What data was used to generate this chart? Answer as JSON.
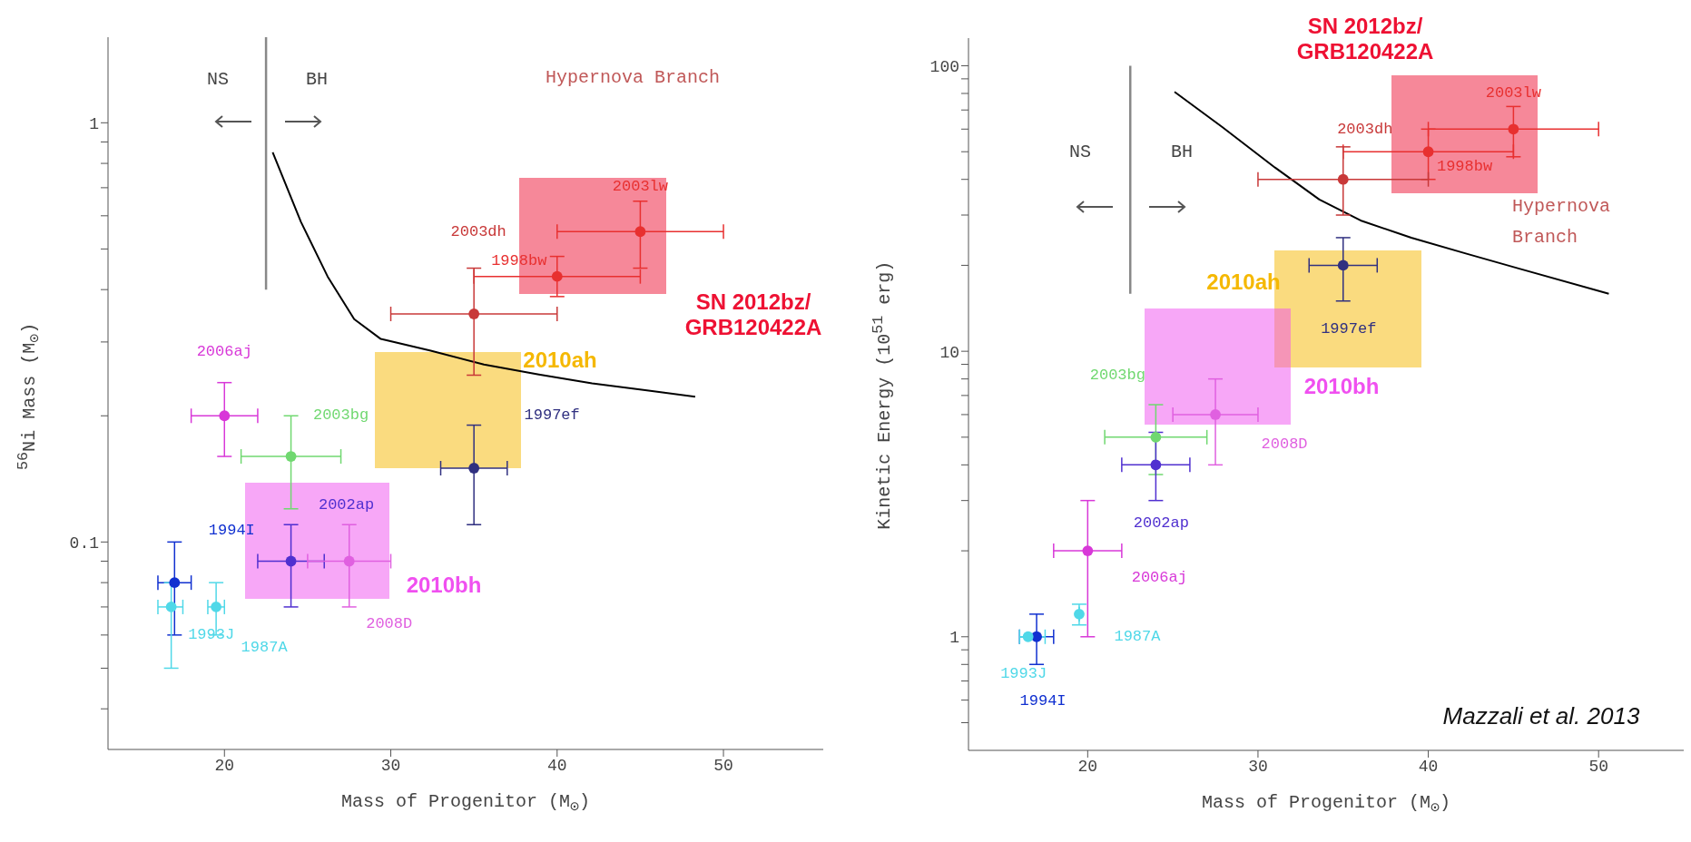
{
  "chart_data": [
    {
      "type": "scatter",
      "xlabel": "Mass of Progenitor (M$_{⊙}$)",
      "ylabel": "$^{56}$Ni Mass (M$_{⊙}$)",
      "log": "y",
      "xlim": [
        13,
        56
      ],
      "xticks": [
        20,
        30,
        40,
        50
      ],
      "ylim": [
        0.032,
        1.6
      ],
      "yticks": [
        {
          "value": 0.04,
          "label": null
        },
        {
          "value": 0.05,
          "label": null
        },
        {
          "value": 0.06,
          "label": null
        },
        {
          "value": 0.07,
          "label": null
        },
        {
          "value": 0.08,
          "label": null
        },
        {
          "value": 0.09,
          "label": null
        },
        0.1,
        {
          "value": 0.2,
          "label": null
        },
        {
          "value": 0.3,
          "label": null
        },
        {
          "value": 0.4,
          "label": null
        },
        {
          "value": 0.5,
          "label": null
        },
        {
          "value": 0.6,
          "label": null
        },
        {
          "value": 0.7,
          "label": null
        },
        {
          "value": 0.8,
          "label": null
        },
        {
          "value": 0.9,
          "label": null
        },
        1
      ],
      "annotations": [
        "Hypernova Branch",
        "NS",
        "BH",
        "SN 2012bz/\nGRB120422A",
        "2010ah",
        "2010bh"
      ],
      "series": [
        {
          "type": "line",
          "color": "#000000",
          "x": [
            22.9,
            24.6,
            26.2,
            27.8,
            29.4,
            32.4,
            35.6,
            38.9,
            42.1,
            45.4,
            48.3
          ],
          "values": [
            0.85,
            0.58,
            0.43,
            0.34,
            0.305,
            0.286,
            0.265,
            0.251,
            0.239,
            0.23,
            0.222
          ]
        },
        {
          "type": "line",
          "color": "#888888",
          "x": [
            22.5,
            22.5
          ],
          "values": [
            1.6,
            0.4
          ]
        },
        {
          "name": "2003lw",
          "marker": "circle",
          "color": "#e83030",
          "x": [
            45
          ],
          "values": [
            0.55
          ],
          "errors": [
            [
              0.45,
              0.65
            ]
          ],
          "xerrors": [
            [
              40,
              50
            ]
          ]
        },
        {
          "name": "1998bw",
          "marker": "circle",
          "color": "#e83030",
          "x": [
            40
          ],
          "values": [
            0.43
          ],
          "errors": [
            [
              0.385,
              0.48
            ]
          ],
          "xerrors": [
            [
              35,
              45
            ]
          ]
        },
        {
          "name": "2003dh",
          "marker": "circle",
          "color": "#c83838",
          "x": [
            35
          ],
          "values": [
            0.35
          ],
          "errors": [
            [
              0.25,
              0.45
            ]
          ],
          "xerrors": [
            [
              30,
              40
            ]
          ]
        },
        {
          "name": "1997ef",
          "marker": "circle",
          "color": "#303080",
          "x": [
            35
          ],
          "values": [
            0.15
          ],
          "errors": [
            [
              0.11,
              0.19
            ]
          ],
          "xerrors": [
            [
              33,
              37
            ]
          ]
        },
        {
          "name": "2006aj",
          "marker": "circle",
          "color": "#d838d8",
          "x": [
            20
          ],
          "values": [
            0.2
          ],
          "errors": [
            [
              0.16,
              0.24
            ]
          ],
          "xerrors": [
            [
              18,
              22
            ]
          ]
        },
        {
          "name": "2003bg",
          "marker": "circle",
          "color": "#70d870",
          "x": [
            24
          ],
          "values": [
            0.16
          ],
          "errors": [
            [
              0.12,
              0.2
            ]
          ],
          "xerrors": [
            [
              21,
              27
            ]
          ]
        },
        {
          "name": "2002ap",
          "marker": "circle",
          "color": "#5030d0",
          "x": [
            24
          ],
          "values": [
            0.09
          ],
          "errors": [
            [
              0.07,
              0.11
            ]
          ],
          "xerrors": [
            [
              22,
              26
            ]
          ]
        },
        {
          "name": "2008D",
          "marker": "circle",
          "color": "#e060e0",
          "x": [
            27.5
          ],
          "values": [
            0.09
          ],
          "errors": [
            [
              0.07,
              0.11
            ]
          ],
          "xerrors": [
            [
              25,
              30
            ]
          ]
        },
        {
          "name": "1994I",
          "marker": "circle",
          "color": "#1030d0",
          "x": [
            17
          ],
          "values": [
            0.08
          ],
          "errors": [
            [
              0.06,
              0.1
            ]
          ],
          "xerrors": [
            [
              16,
              18
            ]
          ]
        },
        {
          "name": "1993J",
          "marker": "circle",
          "color": "#50d8e8",
          "x": [
            16.8
          ],
          "values": [
            0.07
          ],
          "errors": [
            [
              0.05,
              0.08
            ]
          ],
          "xerrors": [
            [
              16,
              17.5
            ]
          ]
        },
        {
          "name": "1987A",
          "marker": "circle",
          "color": "#50d8e8",
          "x": [
            19.5
          ],
          "values": [
            0.07
          ],
          "errors": [
            [
              0.06,
              0.08
            ]
          ],
          "xerrors": [
            [
              19,
              20
            ]
          ]
        }
      ]
    },
    {
      "type": "scatter",
      "xlabel": "Mass of Progenitor (M$_{⊙}$)",
      "ylabel": "Kinetic Energy (10$^{51}$ erg)",
      "log": "y",
      "xlim": [
        13,
        55
      ],
      "xticks": [
        20,
        30,
        40,
        50
      ],
      "ylim": [
        0.4,
        125
      ],
      "yticks": [
        {
          "value": 0.5,
          "label": null
        },
        {
          "value": 0.6,
          "label": null
        },
        {
          "value": 0.7,
          "label": null
        },
        {
          "value": 0.8,
          "label": null
        },
        {
          "value": 0.9,
          "label": null
        },
        1,
        {
          "value": 2,
          "label": null
        },
        {
          "value": 3,
          "label": null
        },
        {
          "value": 4,
          "label": null
        },
        {
          "value": 5,
          "label": null
        },
        {
          "value": 6,
          "label": null
        },
        {
          "value": 7,
          "label": null
        },
        {
          "value": 8,
          "label": null
        },
        {
          "value": 9,
          "label": null
        },
        10,
        {
          "value": 20,
          "label": null
        },
        {
          "value": 30,
          "label": null
        },
        {
          "value": 40,
          "label": null
        },
        {
          "value": 50,
          "label": null
        },
        {
          "value": 60,
          "label": null
        },
        {
          "value": 70,
          "label": null
        },
        {
          "value": 80,
          "label": null
        },
        {
          "value": 90,
          "label": null
        },
        100
      ],
      "annotations": [
        "Hypernova",
        "Branch",
        "NS",
        "BH",
        "Mazzali et al. 2013",
        "SN 2012bz/\nGRB120422A",
        "2010ah",
        "2010bh"
      ],
      "series": [
        {
          "type": "line",
          "color": "#000000",
          "x": [
            25.1,
            27.9,
            31.0,
            33.6,
            36.1,
            39.0,
            42.2,
            45.3,
            50.6
          ],
          "values": [
            81,
            61,
            44,
            34,
            28.6,
            25,
            22,
            19.5,
            15.9
          ]
        },
        {
          "type": "line",
          "color": "#888888",
          "x": [
            22.5,
            22.5
          ],
          "values": [
            100,
            15.9
          ]
        },
        {
          "name": "2003lw",
          "marker": "circle",
          "color": "#e83030",
          "x": [
            45
          ],
          "values": [
            60
          ],
          "errors": [
            [
              48,
              72
            ]
          ],
          "xerrors": [
            [
              40,
              50
            ]
          ]
        },
        {
          "name": "1998bw",
          "marker": "circle",
          "color": "#e83030",
          "x": [
            40
          ],
          "values": [
            50
          ],
          "errors": [
            [
              40,
              60
            ]
          ],
          "xerrors": [
            [
              35,
              45
            ]
          ]
        },
        {
          "name": "2003dh",
          "marker": "circle",
          "color": "#c83838",
          "x": [
            35
          ],
          "values": [
            40
          ],
          "errors": [
            [
              30,
              52
            ]
          ],
          "xerrors": [
            [
              30,
              40
            ]
          ]
        },
        {
          "name": "1997ef",
          "marker": "circle",
          "color": "#303080",
          "x": [
            35
          ],
          "values": [
            20
          ],
          "errors": [
            [
              15,
              25
            ]
          ],
          "xerrors": [
            [
              33,
              37
            ]
          ]
        },
        {
          "name": "2006aj",
          "marker": "circle",
          "color": "#d838d8",
          "x": [
            20
          ],
          "values": [
            2
          ],
          "errors": [
            [
              1,
              3
            ]
          ],
          "xerrors": [
            [
              18,
              22
            ]
          ]
        },
        {
          "name": "2003bg",
          "marker": "circle",
          "color": "#70d870",
          "x": [
            24
          ],
          "values": [
            5
          ],
          "errors": [
            [
              3.7,
              6.5
            ]
          ],
          "xerrors": [
            [
              21,
              27
            ]
          ]
        },
        {
          "name": "2002ap",
          "marker": "circle",
          "color": "#5030d0",
          "x": [
            24
          ],
          "values": [
            4
          ],
          "errors": [
            [
              3,
              5.2
            ]
          ],
          "xerrors": [
            [
              22,
              26
            ]
          ]
        },
        {
          "name": "2008D",
          "marker": "circle",
          "color": "#e060e0",
          "x": [
            27.5
          ],
          "values": [
            6
          ],
          "errors": [
            [
              4,
              8
            ]
          ],
          "xerrors": [
            [
              25,
              30
            ]
          ]
        },
        {
          "name": "1994I",
          "marker": "circle",
          "color": "#1030d0",
          "x": [
            17
          ],
          "values": [
            1
          ],
          "errors": [
            [
              0.8,
              1.2
            ]
          ],
          "xerrors": [
            [
              16,
              18
            ]
          ]
        },
        {
          "name": "1993J",
          "marker": "circle",
          "color": "#50d8e8",
          "x": [
            16.5
          ],
          "values": [
            1
          ],
          "errors": [
            null
          ],
          "xerrors": [
            [
              16,
              17.5
            ]
          ]
        },
        {
          "name": "1987A",
          "marker": "circle",
          "color": "#50d8e8",
          "x": [
            19.5
          ],
          "values": [
            1.2
          ],
          "errors": [
            [
              1.1,
              1.3
            ]
          ],
          "xerrors": [
            null
          ]
        }
      ]
    }
  ]
}
